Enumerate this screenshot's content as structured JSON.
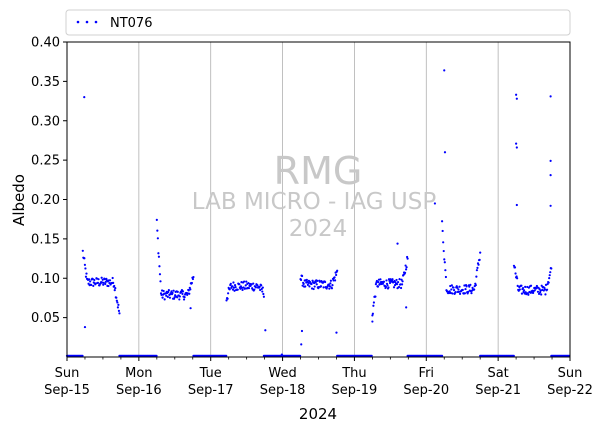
{
  "chart_data": {
    "type": "scatter",
    "ylabel": "Albedo",
    "xlabel": "2024",
    "ylim": [
      0.0,
      0.4
    ],
    "xlim": [
      0,
      7
    ],
    "yticks": [
      0.05,
      0.1,
      0.15,
      0.2,
      0.25,
      0.3,
      0.35,
      0.4
    ],
    "ytick_labels": [
      "0.05",
      "0.10",
      "0.15",
      "0.20",
      "0.25",
      "0.30",
      "0.35",
      "0.40"
    ],
    "xticks": [
      {
        "day": "Sun",
        "date": "Sep-15",
        "x": 0
      },
      {
        "day": "Mon",
        "date": "Sep-16",
        "x": 1
      },
      {
        "day": "Tue",
        "date": "Sep-17",
        "x": 2
      },
      {
        "day": "Wed",
        "date": "Sep-18",
        "x": 3
      },
      {
        "day": "Thu",
        "date": "Sep-19",
        "x": 4
      },
      {
        "day": "Fri",
        "date": "Sep-20",
        "x": 5
      },
      {
        "day": "Sat",
        "date": "Sep-21",
        "x": 6
      },
      {
        "day": "Sun",
        "date": "Sep-22",
        "x": 7
      }
    ],
    "grid": "vertical",
    "legend_position": "top-left-outside",
    "series": [
      {
        "name": "NT076",
        "color": "#0000ff",
        "marker": "dot",
        "daily": [
          {
            "start": 0.22,
            "end": 0.73,
            "peak": 0.133,
            "level": 0.095,
            "tail": 0.055,
            "outliers": [
              [
                0.24,
                0.33
              ],
              [
                0.25,
                0.038
              ]
            ]
          },
          {
            "start": 1.25,
            "end": 1.76,
            "peak": 0.17,
            "level": 0.079,
            "tail": 0.103,
            "outliers": [
              [
                1.72,
                0.062
              ]
            ]
          },
          {
            "start": 2.22,
            "end": 2.74,
            "peak": 0.075,
            "level": 0.09,
            "tail": 0.082,
            "outliers": [
              [
                2.76,
                0.034
              ],
              [
                2.99,
                0.003
              ]
            ]
          },
          {
            "start": 3.25,
            "end": 3.76,
            "peak": 0.1,
            "level": 0.092,
            "tail": 0.108,
            "outliers": [
              [
                3.26,
                0.016
              ],
              [
                3.27,
                0.033
              ],
              [
                3.75,
                0.031
              ]
            ]
          },
          {
            "start": 4.25,
            "end": 4.74,
            "peak": 0.055,
            "level": 0.093,
            "tail": 0.126,
            "outliers": [
              [
                4.25,
                0.045
              ],
              [
                4.6,
                0.144
              ],
              [
                4.72,
                0.063
              ]
            ]
          },
          {
            "start": 5.22,
            "end": 5.75,
            "peak": 0.168,
            "level": 0.086,
            "tail": 0.132,
            "outliers": [
              [
                5.25,
                0.364
              ],
              [
                5.26,
                0.26
              ],
              [
                5.12,
                0.195
              ]
            ]
          },
          {
            "start": 6.22,
            "end": 6.74,
            "peak": 0.118,
            "level": 0.085,
            "tail": 0.112,
            "outliers": [
              [
                6.25,
                0.333
              ],
              [
                6.26,
                0.328
              ],
              [
                6.25,
                0.271
              ],
              [
                6.26,
                0.266
              ],
              [
                6.26,
                0.193
              ],
              [
                6.73,
                0.331
              ],
              [
                6.73,
                0.249
              ],
              [
                6.73,
                0.231
              ],
              [
                6.73,
                0.192
              ]
            ]
          }
        ],
        "night_baseline": 0.0
      }
    ]
  },
  "watermark": {
    "line1": "RMG",
    "line2": "LAB MICRO - IAG USP",
    "line3": "2024"
  }
}
